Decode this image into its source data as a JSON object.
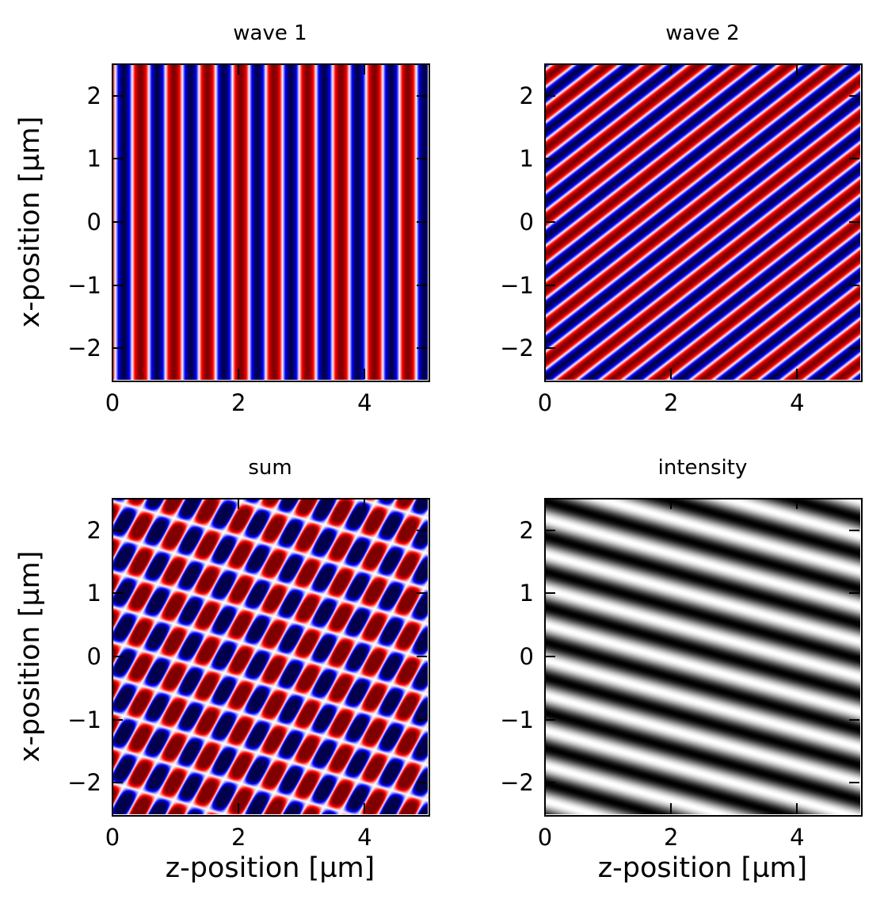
{
  "chart_data": [
    {
      "type": "heatmap",
      "title": "wave 1",
      "xlabel": "",
      "ylabel": "x-position [µm]",
      "xlim": [
        0,
        5
      ],
      "ylim": [
        -2.5,
        2.5
      ],
      "xticks": [
        "0",
        "2",
        "4"
      ],
      "xtick_values": [
        0,
        2,
        4
      ],
      "yticks": [
        "−2",
        "−1",
        "0",
        "1",
        "2"
      ],
      "ytick_values": [
        -2,
        -1,
        0,
        1,
        2
      ],
      "colormap": "seismic",
      "clim": [
        -1,
        1
      ],
      "field": "cos(2π(kz·z + kx·x) + φ)",
      "kz_cycles_per_um": 1.887,
      "kx_cycles_per_um": 0,
      "phase": 1.0
    },
    {
      "type": "heatmap",
      "title": "wave 2",
      "xlabel": "",
      "ylabel": "",
      "xlim": [
        0,
        5
      ],
      "ylim": [
        -2.5,
        2.5
      ],
      "xticks": [
        "0",
        "2",
        "4"
      ],
      "xtick_values": [
        0,
        2,
        4
      ],
      "yticks": [
        "−2",
        "−1",
        "0",
        "1",
        "2"
      ],
      "ytick_values": [
        -2,
        -1,
        0,
        1,
        2
      ],
      "colormap": "seismic",
      "clim": [
        -1,
        1
      ],
      "field": "cos(2π(kz·z + kx·x) + φ)",
      "kz_cycles_per_um": 1.39,
      "kx_cycles_per_um": -1.79,
      "phase": 0.4
    },
    {
      "type": "heatmap",
      "title": "sum",
      "xlabel": "z-position [µm]",
      "ylabel": "x-position [µm]",
      "xlim": [
        0,
        5
      ],
      "ylim": [
        -2.5,
        2.5
      ],
      "xticks": [
        "0",
        "2",
        "4"
      ],
      "xtick_values": [
        0,
        2,
        4
      ],
      "yticks": [
        "−2",
        "−1",
        "0",
        "1",
        "2"
      ],
      "ytick_values": [
        -2,
        -1,
        0,
        1,
        2
      ],
      "colormap": "seismic",
      "clim": [
        -1,
        1
      ],
      "field": "wave 1 + wave 2"
    },
    {
      "type": "heatmap",
      "title": "intensity",
      "xlabel": "z-position [µm]",
      "ylabel": "",
      "xlim": [
        0,
        5
      ],
      "ylim": [
        -2.5,
        2.5
      ],
      "xticks": [
        "0",
        "2",
        "4"
      ],
      "xtick_values": [
        0,
        2,
        4
      ],
      "yticks": [
        "−2",
        "−1",
        "0",
        "1",
        "2"
      ],
      "ytick_values": [
        -2,
        -1,
        0,
        1,
        2
      ],
      "colormap": "gray",
      "clim": [
        0,
        4
      ],
      "field": "|wave 1 + wave 2|² (time-averaged)"
    }
  ]
}
